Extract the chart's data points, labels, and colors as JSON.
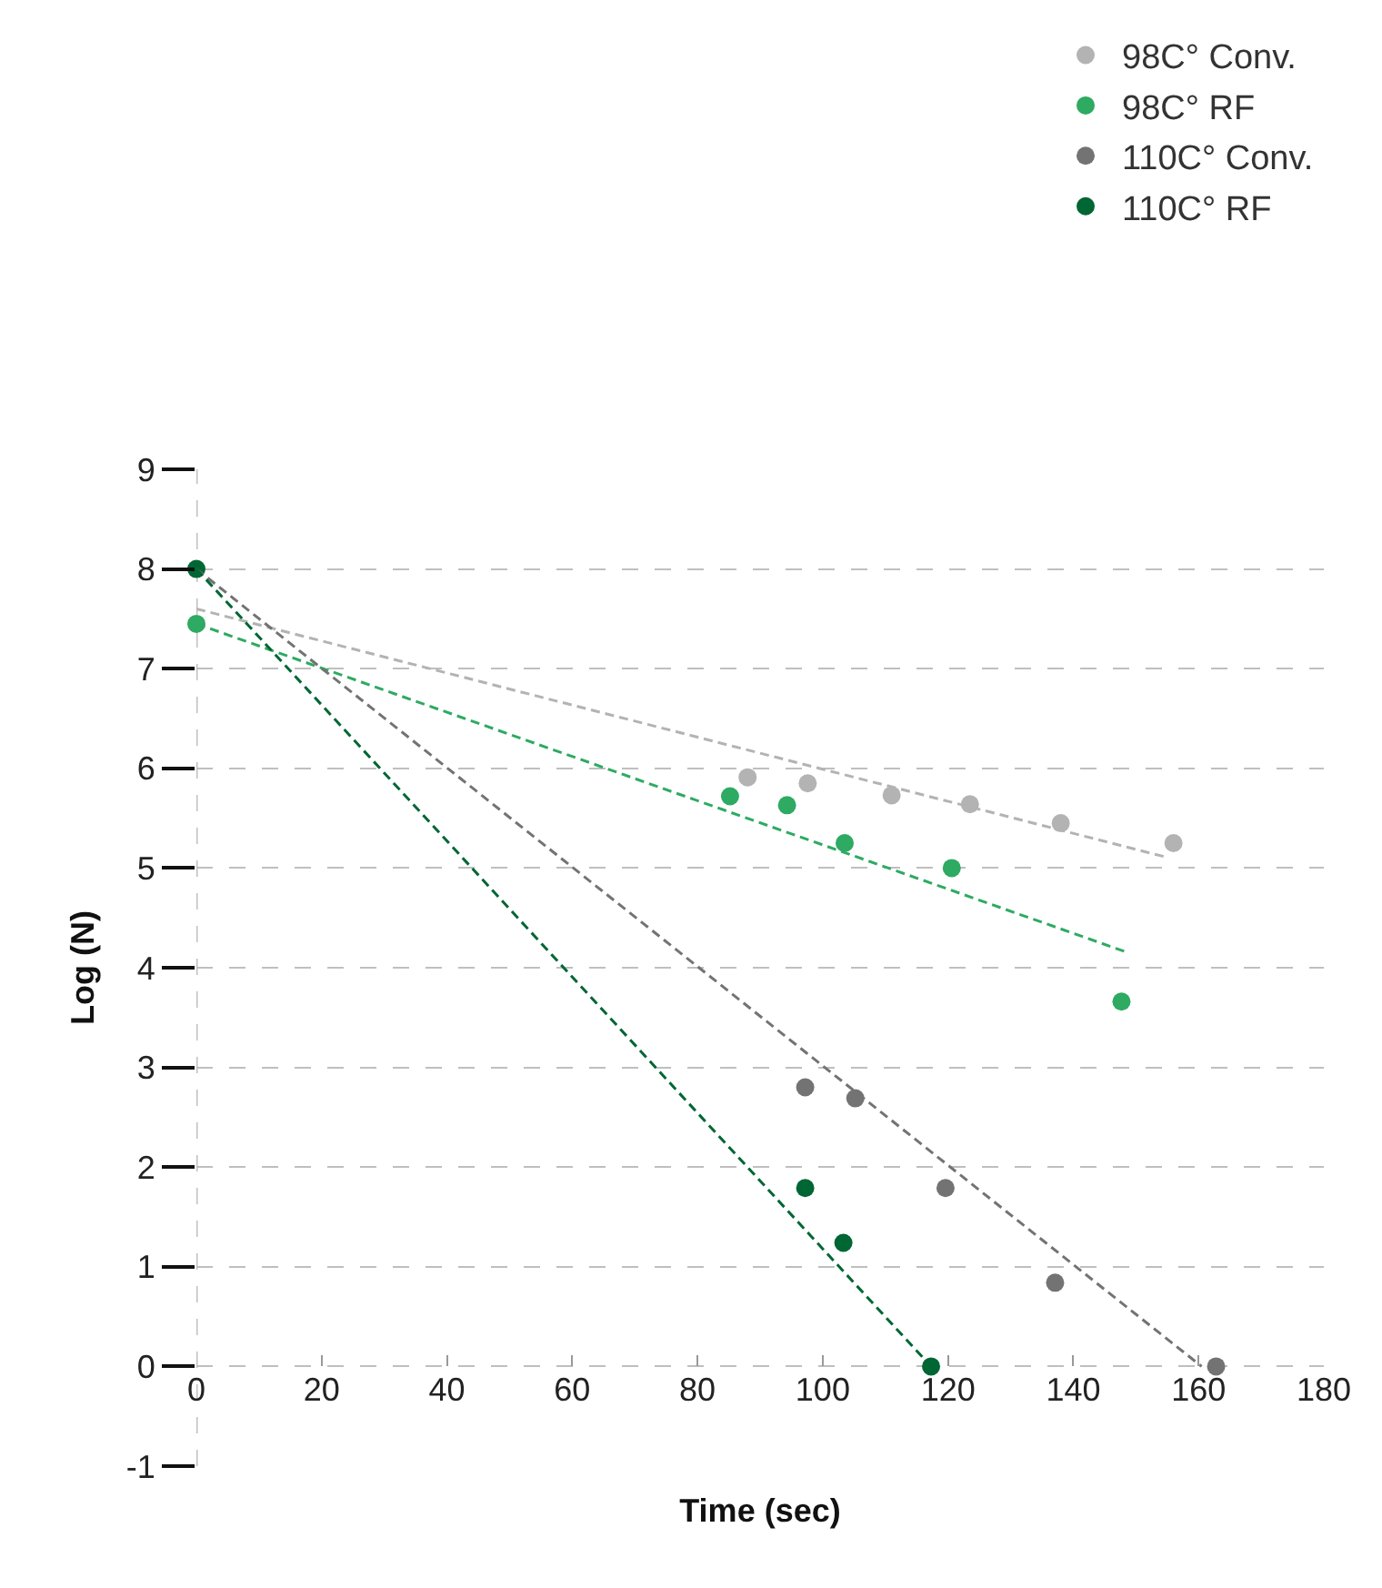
{
  "chart_data": {
    "type": "scatter",
    "xlabel": "Time (sec)",
    "ylabel": "Log (N)",
    "xlim": [
      0,
      180
    ],
    "xticks": [
      0,
      20,
      40,
      60,
      80,
      100,
      120,
      140,
      160,
      180
    ],
    "ylim": [
      -1,
      9
    ],
    "yticks": [
      -1,
      0,
      1,
      2,
      3,
      4,
      5,
      6,
      7,
      8,
      9
    ],
    "grid": "y",
    "legend": "top right",
    "marker": "circle",
    "series": [
      {
        "name": "98C° Conv.",
        "color": "#b3b3b3",
        "x": [
          88,
          97.6,
          111,
          123.5,
          138,
          156
        ],
        "values": [
          5.91,
          5.85,
          5.73,
          5.64,
          5.45,
          5.25
        ]
      },
      {
        "name": "98C° RF",
        "color": "#2eaa62",
        "x": [
          0,
          85.2,
          94.3,
          103.5,
          120.6,
          147.7
        ],
        "values": [
          7.45,
          5.72,
          5.63,
          5.25,
          5.0,
          3.66
        ]
      },
      {
        "name": "110C° Conv.",
        "color": "#737373",
        "x": [
          97.2,
          105.2,
          119.6,
          137.1,
          162.8
        ],
        "values": [
          2.8,
          2.69,
          1.79,
          0.84,
          0
        ]
      },
      {
        "name": "110C° RF",
        "color": "#006633",
        "x": [
          0,
          97.2,
          103.3,
          117.3
        ],
        "values": [
          8.0,
          1.79,
          1.24,
          0
        ]
      },
      {
        "type": "line",
        "color": "#b3b3b3",
        "line_style": "dashed",
        "marker": "none",
        "x": [
          0,
          154.8
        ],
        "values": [
          7.6,
          5.11
        ]
      },
      {
        "type": "line",
        "color": "#2eaa62",
        "line_style": "dashed",
        "marker": "none",
        "x": [
          0,
          148.8
        ],
        "values": [
          7.45,
          4.15
        ]
      },
      {
        "type": "line",
        "color": "#737373",
        "line_style": "dashed",
        "marker": "none",
        "x": [
          0,
          160.5
        ],
        "values": [
          8.0,
          0
        ]
      },
      {
        "type": "line",
        "color": "#006633",
        "line_style": "dashed",
        "marker": "none",
        "x": [
          0,
          117.3
        ],
        "values": [
          8.0,
          0
        ]
      }
    ]
  }
}
